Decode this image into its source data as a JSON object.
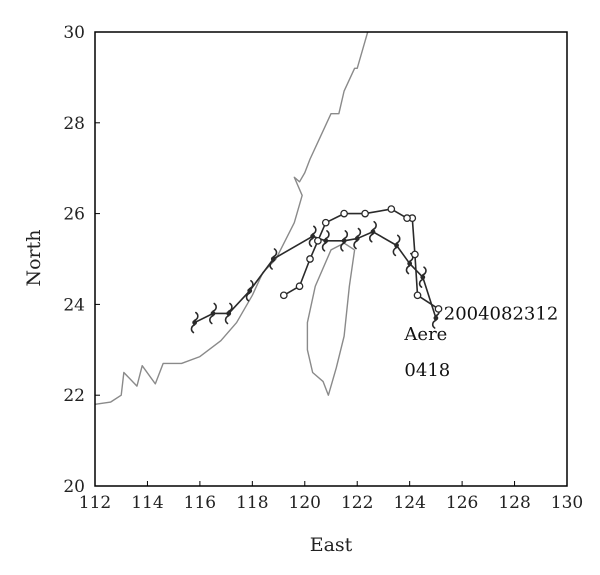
{
  "chart_data": {
    "type": "line",
    "xlabel": "East",
    "ylabel": "North",
    "xlim": [
      112,
      130
    ],
    "ylim": [
      20,
      30
    ],
    "xticks": [
      112,
      114,
      116,
      118,
      120,
      122,
      124,
      126,
      128,
      130
    ],
    "yticks": [
      20,
      22,
      24,
      26,
      28,
      30
    ],
    "annotations": [
      {
        "text": "2004082312",
        "x": 125.3,
        "y": 23.8
      },
      {
        "text": "Aere",
        "x": 123.8,
        "y": 23.35
      },
      {
        "text": "0418",
        "x": 123.8,
        "y": 22.55
      }
    ],
    "series": [
      {
        "marker": "typhoon-symbol",
        "color": "#2a2a2a",
        "x": [
          125.0,
          124.5,
          124.0,
          123.5,
          122.6,
          122.0,
          121.5,
          120.8,
          120.3,
          118.8,
          117.9,
          117.1,
          116.5,
          115.8
        ],
        "y": [
          23.7,
          24.6,
          24.9,
          25.3,
          25.6,
          25.45,
          25.4,
          25.4,
          25.5,
          25.0,
          24.3,
          23.8,
          23.8,
          23.6
        ]
      },
      {
        "marker": "open-circle",
        "color": "#2a2a2a",
        "x": [
          125.1,
          124.3,
          124.2,
          124.1,
          123.9,
          123.3,
          122.3,
          121.5,
          120.8,
          120.5,
          120.2,
          119.8,
          119.2
        ],
        "y": [
          23.9,
          24.2,
          25.1,
          25.9,
          25.9,
          26.1,
          26.0,
          26.0,
          25.8,
          25.4,
          25.0,
          24.4,
          24.2
        ]
      }
    ],
    "coastlines": [
      {
        "name": "mainland-china-coast",
        "color": "#8a8a8a",
        "x": [
          112.0,
          112.6,
          113.0,
          113.1,
          113.6,
          113.8,
          114.3,
          114.6,
          115.3,
          116.0,
          116.8,
          117.4,
          118.0,
          118.4,
          118.9,
          119.6,
          119.9,
          119.6,
          119.8,
          120.0,
          120.2,
          120.6,
          121.0,
          121.3,
          121.5,
          121.9,
          122.0,
          122.3,
          122.4
        ],
        "y": [
          21.8,
          21.85,
          22.0,
          22.5,
          22.2,
          22.65,
          22.25,
          22.7,
          22.7,
          22.85,
          23.2,
          23.6,
          24.2,
          24.7,
          25.0,
          25.8,
          26.4,
          26.8,
          26.7,
          26.9,
          27.2,
          27.7,
          28.2,
          28.2,
          28.7,
          29.2,
          29.2,
          29.8,
          30.0
        ]
      },
      {
        "name": "taiwan-coast",
        "color": "#8a8a8a",
        "x": [
          121.9,
          121.5,
          121.0,
          120.4,
          120.1,
          120.1,
          120.3,
          120.7,
          120.9,
          121.2,
          121.5,
          121.7,
          121.9
        ],
        "y": [
          25.2,
          25.35,
          25.2,
          24.4,
          23.6,
          23.0,
          22.5,
          22.3,
          22.0,
          22.6,
          23.3,
          24.4,
          25.2
        ]
      }
    ]
  }
}
